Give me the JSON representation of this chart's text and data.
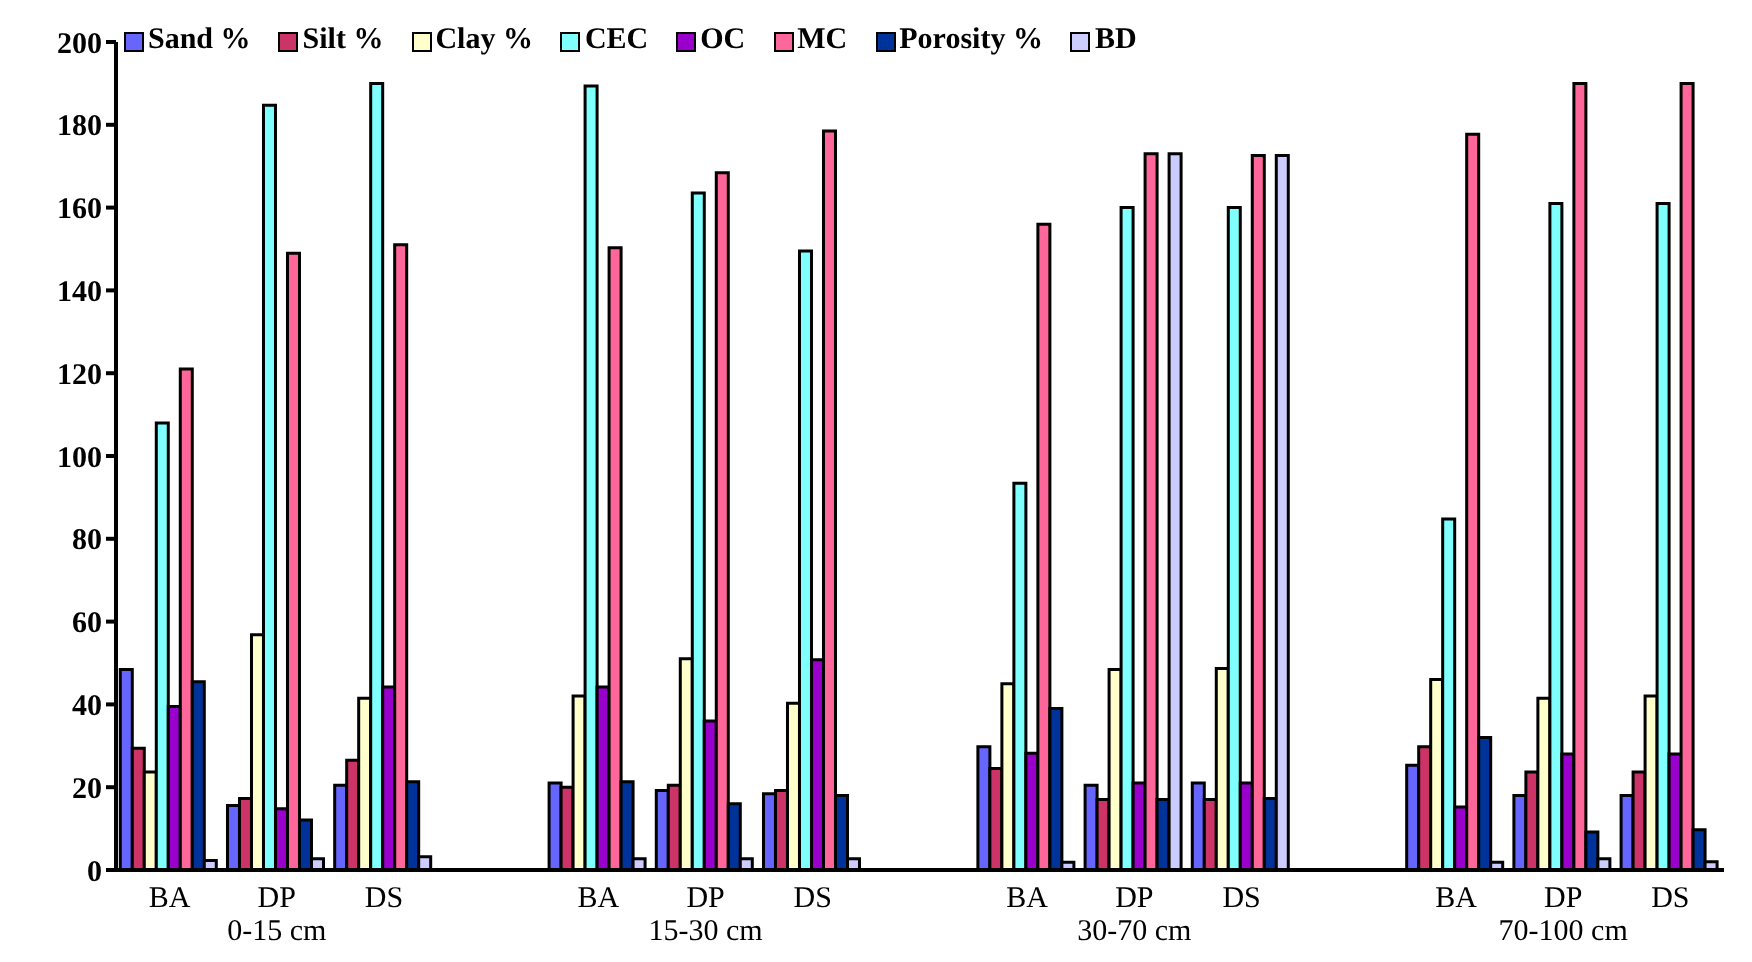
{
  "chart_data": {
    "type": "bar",
    "categories": [
      "BA",
      "DP",
      "DS",
      null,
      "BA",
      "DP",
      "DS",
      null,
      "BA",
      "DP",
      "DS",
      null,
      "BA",
      "DP",
      "DS"
    ],
    "annotations": [
      "0-15 cm",
      "15-30 cm",
      "30-70 cm",
      "70-100 cm"
    ],
    "ylim": [
      0,
      200
    ],
    "yticks": [
      0,
      20,
      40,
      60,
      80,
      100,
      120,
      140,
      160,
      180,
      200
    ],
    "grid": false,
    "legend": "top",
    "series": [
      {
        "name": "Sand %",
        "color": "#6666ff",
        "values": [
          48.4,
          15.6,
          20.5,
          null,
          21,
          19.2,
          18.4,
          null,
          29.8,
          20.5,
          21,
          null,
          25.3,
          18,
          18
        ]
      },
      {
        "name": "Silt %",
        "color": "#cc3366",
        "values": [
          29.4,
          17.3,
          26.5,
          null,
          20,
          20.5,
          19.2,
          null,
          24.5,
          17,
          17,
          null,
          29.8,
          23.7,
          23.7
        ]
      },
      {
        "name": "Clay %",
        "color": "#ffffcc",
        "values": [
          23.7,
          56.8,
          41.5,
          null,
          42,
          51,
          40.3,
          null,
          45,
          48.4,
          48.7,
          null,
          46,
          41.5,
          42
        ]
      },
      {
        "name": "CEC",
        "color": "#80ffff",
        "values": [
          108,
          184.7,
          190,
          null,
          189.4,
          163.5,
          149.5,
          null,
          93.4,
          160,
          160,
          null,
          84.8,
          161,
          161
        ]
      },
      {
        "name": "OC",
        "color": "#9900cc",
        "values": [
          39.5,
          14.8,
          44.2,
          null,
          44.2,
          36,
          50.8,
          null,
          28.2,
          21,
          21,
          null,
          15.2,
          28,
          28
        ]
      },
      {
        "name": "MC",
        "color": "#ff6699",
        "values": [
          121,
          149,
          151,
          null,
          150.3,
          168.4,
          178.5,
          null,
          156,
          173,
          172.6,
          null,
          177.7,
          190,
          190
        ]
      },
      {
        "name": "Porosity %",
        "color": "#003399",
        "values": [
          45.5,
          12.1,
          21.3,
          null,
          21.3,
          16,
          18,
          null,
          39,
          17,
          17.3,
          null,
          32,
          9.2,
          9.7
        ]
      },
      {
        "name": "BD",
        "color": "#ccccff",
        "values": [
          2.3,
          2.7,
          3.2,
          null,
          2.7,
          2.7,
          2.7,
          null,
          1.9,
          173,
          172.6,
          null,
          1.9,
          2.7,
          2
        ]
      }
    ]
  }
}
